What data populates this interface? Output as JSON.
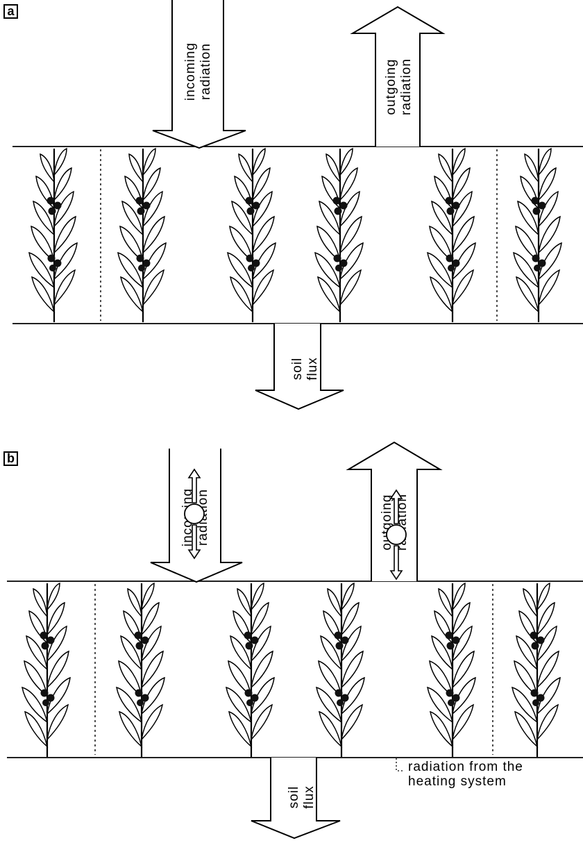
{
  "panels": [
    {
      "id": "a",
      "tag": "a",
      "incoming": [
        "incoming",
        "radiation"
      ],
      "outgoing": [
        "outgoing",
        "radiation"
      ],
      "soil": [
        "soil",
        "flux"
      ]
    },
    {
      "id": "b",
      "tag": "b",
      "incoming": [
        "incoming",
        "radiation"
      ],
      "outgoing": [
        "outgoing",
        "radiation"
      ],
      "soil": [
        "soil",
        "flux"
      ],
      "heating_label": [
        "radiation from the",
        "heating system"
      ]
    }
  ],
  "colors": {
    "ink": "#000000",
    "paper": "#ffffff",
    "berry": "#111111"
  },
  "icons": {
    "plant": "plant-icon",
    "heater": "heating-pipe-icon"
  }
}
